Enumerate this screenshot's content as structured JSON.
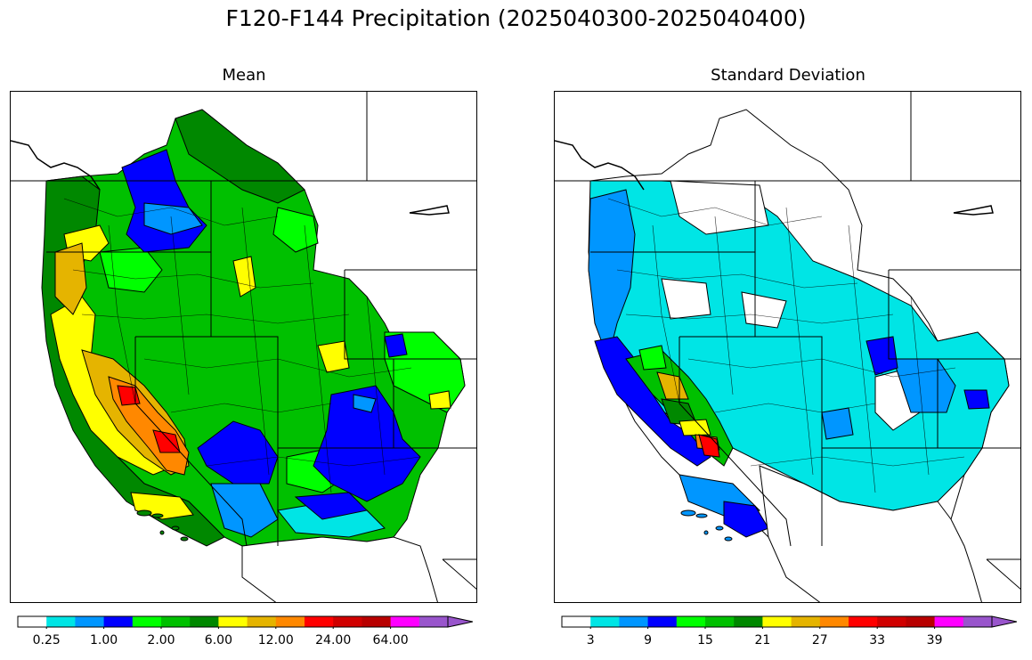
{
  "title": "F120-F144 Precipitation (2025040300-2025040400)",
  "panels": [
    {
      "title": "Mean",
      "colorbar": {
        "colors": [
          "#ffffff",
          "#00e5e5",
          "#0096ff",
          "#0000ff",
          "#00ff00",
          "#00c000",
          "#008800",
          "#ffff00",
          "#e5b400",
          "#ff8800",
          "#ff0000",
          "#d00000",
          "#b80000",
          "#ff00ff",
          "#9955cc"
        ],
        "tick_labels": [
          "0.25",
          "1.00",
          "2.00",
          "6.00",
          "12.00",
          "24.00",
          "64.00"
        ],
        "extend": "max"
      }
    },
    {
      "title": "Standard Deviation",
      "colorbar": {
        "colors": [
          "#ffffff",
          "#00e5e5",
          "#0096ff",
          "#0000ff",
          "#00ff00",
          "#00c000",
          "#008800",
          "#ffff00",
          "#e5b400",
          "#ff8800",
          "#ff0000",
          "#d00000",
          "#b80000",
          "#ff00ff",
          "#9955cc"
        ],
        "tick_labels": [
          "3",
          "9",
          "15",
          "21",
          "27",
          "33",
          "39"
        ],
        "extend": "max"
      }
    }
  ]
}
